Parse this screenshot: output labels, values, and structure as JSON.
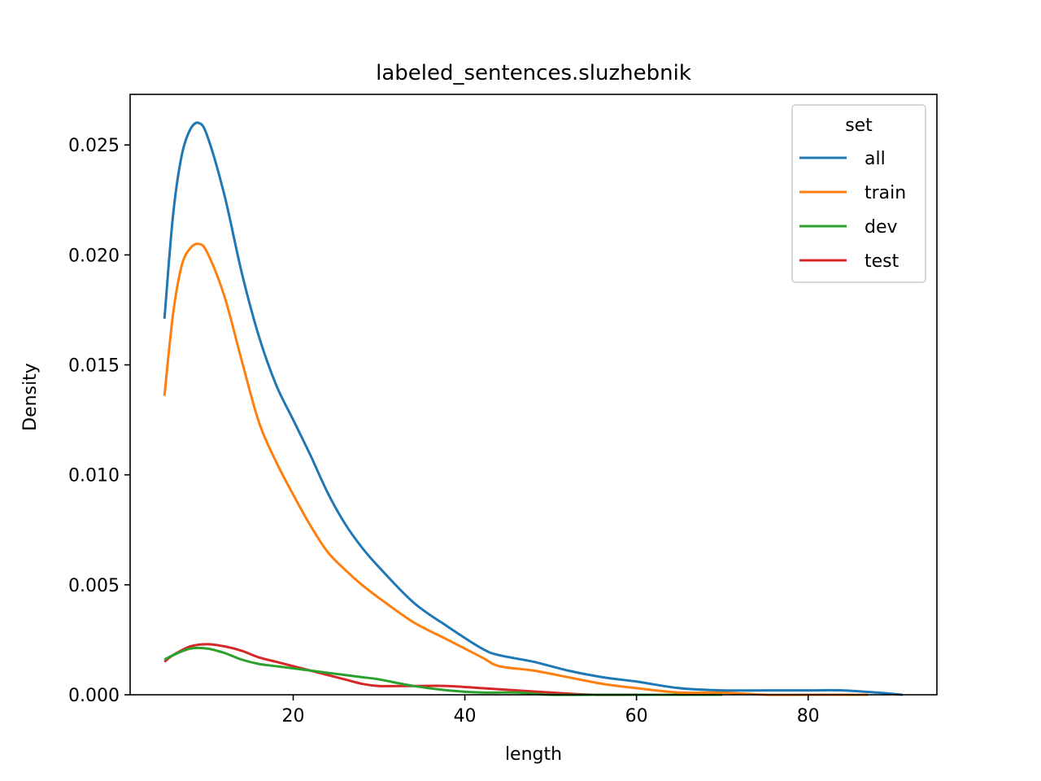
{
  "chart_data": {
    "type": "line",
    "title": "labeled_sentences.sluzhebnik",
    "xlabel": "length",
    "ylabel": "Density",
    "xlim": [
      1,
      95
    ],
    "ylim": [
      0,
      0.0273
    ],
    "xticks": [
      20,
      40,
      60,
      80
    ],
    "xtick_labels": [
      "20",
      "40",
      "60",
      "80"
    ],
    "yticks": [
      0.0,
      0.005,
      0.01,
      0.015,
      0.02,
      0.025
    ],
    "ytick_labels": [
      "0.000",
      "0.005",
      "0.010",
      "0.015",
      "0.020",
      "0.025"
    ],
    "grid": false,
    "legend": {
      "title": "set",
      "placement": "top-right"
    },
    "series": [
      {
        "name": "all",
        "color": "#1f77b4",
        "x": [
          5,
          6,
          7,
          8,
          9,
          10,
          12,
          14,
          16,
          18,
          20,
          22,
          24,
          26,
          28,
          30,
          34,
          38,
          42,
          44,
          48,
          52,
          56,
          60,
          65,
          70,
          75,
          80,
          84,
          88,
          91
        ],
        "y": [
          0.0171,
          0.0218,
          0.0245,
          0.0257,
          0.026,
          0.0254,
          0.0227,
          0.0192,
          0.0163,
          0.0141,
          0.0125,
          0.0109,
          0.0092,
          0.0078,
          0.0067,
          0.0058,
          0.0042,
          0.0031,
          0.0021,
          0.0018,
          0.0015,
          0.0011,
          0.0008,
          0.0006,
          0.0003,
          0.0002,
          0.0002,
          0.0002,
          0.0002,
          0.0001,
          0.0
        ]
      },
      {
        "name": "train",
        "color": "#ff7f0e",
        "x": [
          5,
          6,
          7,
          8,
          9,
          10,
          12,
          14,
          16,
          18,
          20,
          22,
          24,
          26,
          28,
          30,
          34,
          38,
          42,
          44,
          48,
          52,
          56,
          60,
          65,
          70,
          75,
          80,
          84,
          87
        ],
        "y": [
          0.0136,
          0.0173,
          0.0195,
          0.0203,
          0.0205,
          0.0201,
          0.0181,
          0.0152,
          0.0124,
          0.0106,
          0.0091,
          0.0077,
          0.0065,
          0.0057,
          0.005,
          0.0044,
          0.0033,
          0.0025,
          0.0017,
          0.0013,
          0.0011,
          0.0008,
          0.0005,
          0.0003,
          0.0001,
          0.0001,
          0.0,
          0.0,
          0.0,
          0.0
        ]
      },
      {
        "name": "dev",
        "color": "#2ca02c",
        "x": [
          5,
          6,
          8,
          10,
          12,
          14,
          16,
          18,
          20,
          22,
          24,
          26,
          28,
          30,
          34,
          38,
          42,
          46,
          50,
          55,
          60,
          65,
          70
        ],
        "y": [
          0.0016,
          0.0018,
          0.0021,
          0.0021,
          0.0019,
          0.0016,
          0.0014,
          0.0013,
          0.0012,
          0.0011,
          0.001,
          0.0009,
          0.0008,
          0.0007,
          0.0004,
          0.0002,
          0.0001,
          0.0001,
          0.0,
          0.0,
          0.0,
          0.0,
          0.0
        ]
      },
      {
        "name": "test",
        "color": "#d62728",
        "x": [
          5,
          6,
          8,
          10,
          12,
          14,
          16,
          18,
          20,
          22,
          24,
          26,
          28,
          30,
          34,
          38,
          42,
          46,
          50,
          55,
          60,
          66
        ],
        "y": [
          0.0015,
          0.0018,
          0.0022,
          0.0023,
          0.0022,
          0.002,
          0.0017,
          0.0015,
          0.0013,
          0.0011,
          0.0009,
          0.0007,
          0.0005,
          0.0004,
          0.0004,
          0.0004,
          0.0003,
          0.0002,
          0.0001,
          0.0,
          0.0,
          0.0
        ]
      }
    ]
  }
}
